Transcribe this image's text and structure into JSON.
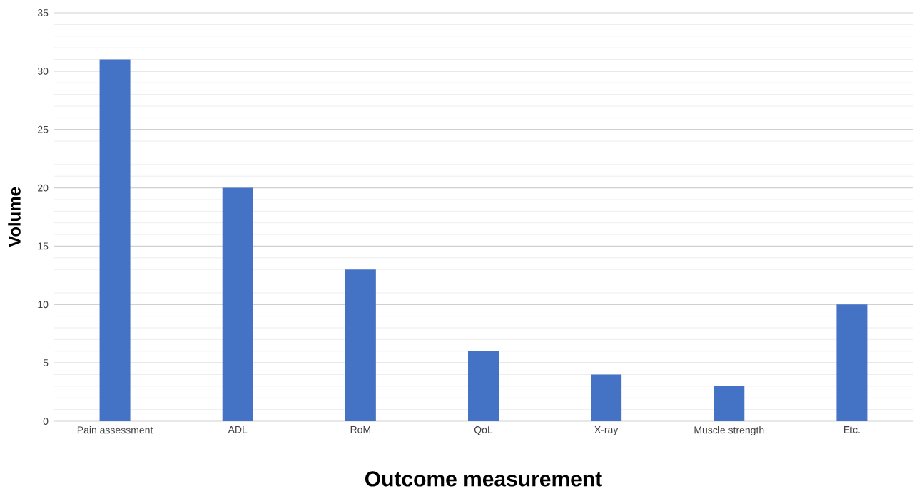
{
  "chart_data": {
    "type": "bar",
    "xlabel": "Outcome measurement",
    "ylabel": "Volume",
    "categories": [
      "Pain assessment",
      "ADL",
      "RoM",
      "QoL",
      "X-ray",
      "Muscle strength",
      "Etc."
    ],
    "values": [
      31,
      20,
      13,
      6,
      4,
      3,
      10
    ],
    "color": "#4472c4",
    "ylim": [
      0,
      35
    ],
    "yticks": [
      0,
      5,
      10,
      15,
      20,
      25,
      30,
      35
    ],
    "grid": "y"
  }
}
